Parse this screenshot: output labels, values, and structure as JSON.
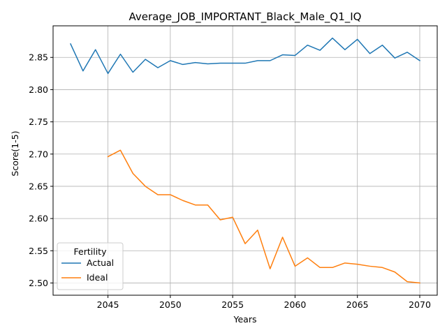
{
  "chart_data": {
    "type": "line",
    "title": "Average_JOB_IMPORTANT_Black_Male_Q1_IQ",
    "xlabel": "Years",
    "ylabel": "Score(1-5)",
    "xlim": [
      2040.6,
      2071.4
    ],
    "ylim": [
      2.481,
      2.899
    ],
    "xticks": [
      2045,
      2050,
      2055,
      2060,
      2065,
      2070
    ],
    "xtick_labels": [
      "2045",
      "2050",
      "2055",
      "2060",
      "2065",
      "2070"
    ],
    "yticks": [
      2.5,
      2.55,
      2.6,
      2.65,
      2.7,
      2.75,
      2.8,
      2.85
    ],
    "ytick_labels": [
      "2.50",
      "2.55",
      "2.60",
      "2.65",
      "2.70",
      "2.75",
      "2.80",
      "2.85"
    ],
    "grid": true,
    "legend": {
      "title": "Fertility",
      "placement": "lower-left"
    },
    "series": [
      {
        "name": "Actual",
        "color": "#1f77b4",
        "x": [
          2042,
          2043,
          2044,
          2045,
          2046,
          2047,
          2048,
          2049,
          2050,
          2051,
          2052,
          2053,
          2054,
          2055,
          2056,
          2057,
          2058,
          2059,
          2060,
          2061,
          2062,
          2063,
          2064,
          2065,
          2066,
          2067,
          2068,
          2069,
          2070
        ],
        "y": [
          2.871,
          2.829,
          2.862,
          2.825,
          2.855,
          2.827,
          2.847,
          2.834,
          2.845,
          2.839,
          2.842,
          2.84,
          2.841,
          2.841,
          2.841,
          2.845,
          2.845,
          2.854,
          2.853,
          2.869,
          2.861,
          2.88,
          2.862,
          2.878,
          2.856,
          2.869,
          2.849,
          2.858,
          2.845
        ]
      },
      {
        "name": "Ideal",
        "color": "#ff7f0e",
        "x": [
          2045,
          2046,
          2047,
          2048,
          2049,
          2050,
          2051,
          2052,
          2053,
          2054,
          2055,
          2056,
          2057,
          2058,
          2059,
          2060,
          2061,
          2062,
          2063,
          2064,
          2065,
          2066,
          2067,
          2068,
          2069,
          2070
        ],
        "y": [
          2.696,
          2.706,
          2.67,
          2.65,
          2.637,
          2.637,
          2.628,
          2.621,
          2.621,
          2.598,
          2.602,
          2.561,
          2.582,
          2.522,
          2.571,
          2.526,
          2.539,
          2.524,
          2.524,
          2.531,
          2.529,
          2.526,
          2.524,
          2.517,
          2.502,
          2.5
        ]
      }
    ]
  }
}
